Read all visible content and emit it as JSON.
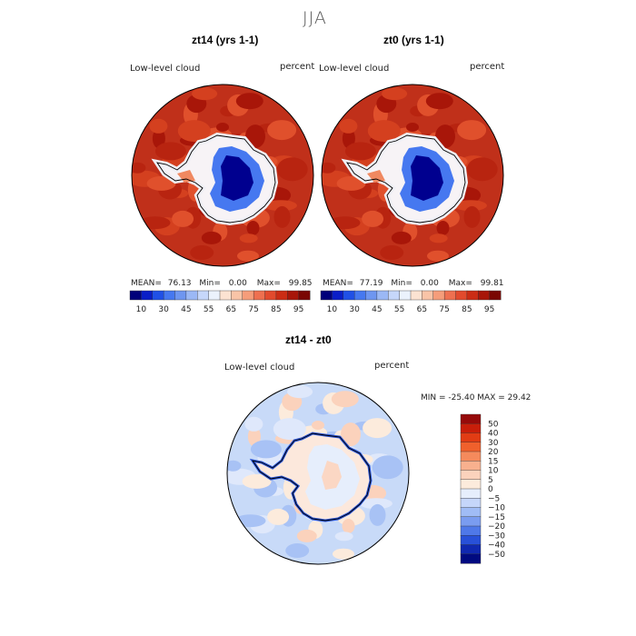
{
  "season_title": "JJA",
  "panels": [
    {
      "title": "zt14 (yrs 1-1)",
      "variable": "Low-level cloud",
      "units": "percent",
      "stats": {
        "mean_label": "MEAN=",
        "mean": "76.13",
        "min_label": "Min=",
        "min": "0.00",
        "max_label": "Max=",
        "max": "99.85"
      }
    },
    {
      "title": "zt0 (yrs 1-1)",
      "variable": "Low-level cloud",
      "units": "percent",
      "stats": {
        "mean_label": "MEAN=",
        "mean": "77.19",
        "min_label": "Min=",
        "min": "0.00",
        "max_label": "Max=",
        "max": "99.81"
      }
    }
  ],
  "diff_panel": {
    "title": "zt14 - zt0",
    "variable": "Low-level cloud",
    "units": "percent",
    "minmax_text": "MIN = -25.40 MAX =  29.42"
  },
  "chart_data": [
    {
      "type": "heatmap",
      "title": "zt14 (yrs 1-1)",
      "projection": "south polar stereographic",
      "variable": "Low-level cloud",
      "units": "percent",
      "mean": 76.13,
      "min": 0.0,
      "max": 99.85,
      "colorbar": {
        "orientation": "horizontal",
        "levels": [
          10,
          20,
          30,
          40,
          45,
          50,
          55,
          60,
          65,
          70,
          75,
          80,
          85,
          90,
          95
        ],
        "tick_labels": [
          "10",
          "30",
          "45",
          "55",
          "65",
          "75",
          "85",
          "95"
        ],
        "colors": [
          "#00007a",
          "#0a1ec8",
          "#2050e6",
          "#4678f0",
          "#6e96f0",
          "#9bb8f5",
          "#c6d7fa",
          "#ebf2fc",
          "#fce3d2",
          "#f9c4a7",
          "#f59d7a",
          "#ee7050",
          "#e24a2d",
          "#cb2c14",
          "#a81609",
          "#7a0602"
        ]
      }
    },
    {
      "type": "heatmap",
      "title": "zt0 (yrs 1-1)",
      "projection": "south polar stereographic",
      "variable": "Low-level cloud",
      "units": "percent",
      "mean": 77.19,
      "min": 0.0,
      "max": 99.81,
      "colorbar": {
        "orientation": "horizontal",
        "levels": [
          10,
          20,
          30,
          40,
          45,
          50,
          55,
          60,
          65,
          70,
          75,
          80,
          85,
          90,
          95
        ],
        "tick_labels": [
          "10",
          "30",
          "45",
          "55",
          "65",
          "75",
          "85",
          "95"
        ],
        "colors": [
          "#00007a",
          "#0a1ec8",
          "#2050e6",
          "#4678f0",
          "#6e96f0",
          "#9bb8f5",
          "#c6d7fa",
          "#ebf2fc",
          "#fce3d2",
          "#f9c4a7",
          "#f59d7a",
          "#ee7050",
          "#e24a2d",
          "#cb2c14",
          "#a81609",
          "#7a0602"
        ]
      }
    },
    {
      "type": "heatmap",
      "title": "zt14 - zt0",
      "projection": "south polar stereographic",
      "variable": "Low-level cloud",
      "units": "percent",
      "min": -25.4,
      "max": 29.42,
      "colorbar": {
        "orientation": "vertical",
        "levels": [
          50,
          40,
          30,
          20,
          15,
          10,
          5,
          0,
          -5,
          -10,
          -15,
          -20,
          -30,
          -40,
          -50
        ],
        "tick_labels": [
          "50",
          "40",
          "30",
          "20",
          "15",
          "10",
          "5",
          "0",
          "−5",
          "−10",
          "−15",
          "−20",
          "−30",
          "−40",
          "−50"
        ],
        "colors": [
          "#960a0a",
          "#c81e0a",
          "#e13c14",
          "#f0602c",
          "#f58a5c",
          "#f8b08e",
          "#fbd2bc",
          "#fcebdc",
          "#e6eefc",
          "#c5d6fa",
          "#a0bcf6",
          "#7a9cf0",
          "#4f78e8",
          "#2850d8",
          "#1028b0",
          "#000a80"
        ]
      }
    }
  ]
}
